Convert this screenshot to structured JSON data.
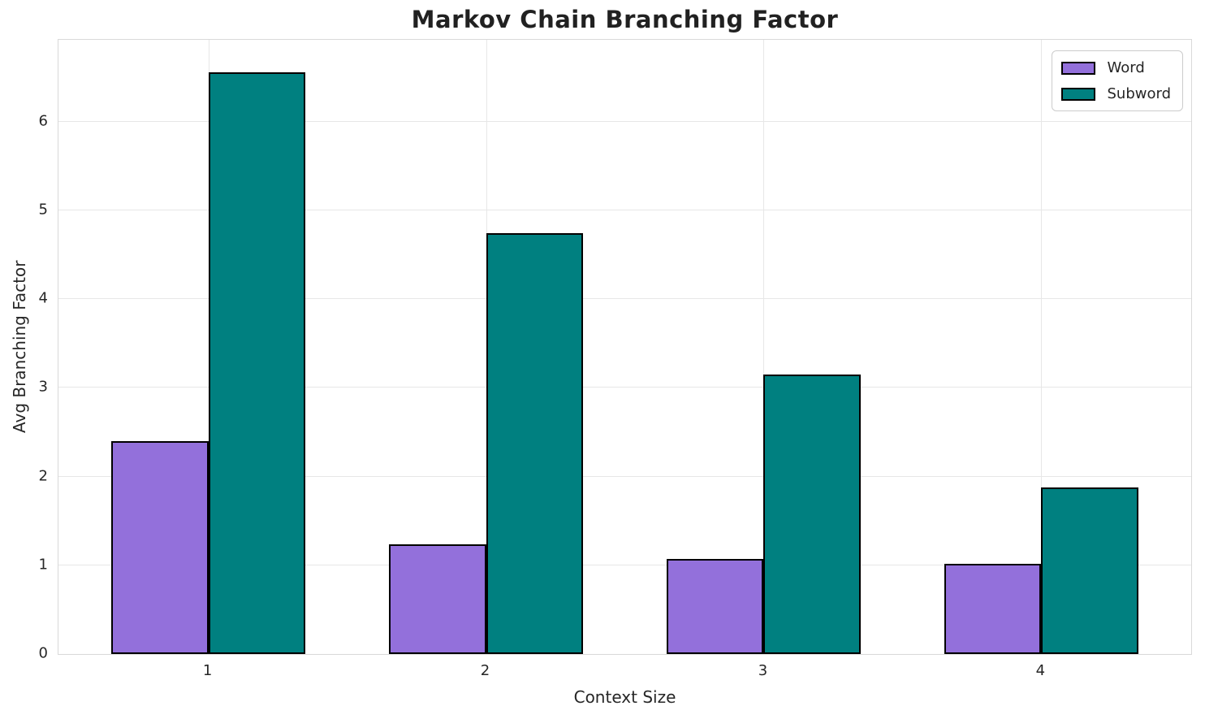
{
  "chart_data": {
    "type": "bar",
    "title": "Markov Chain Branching Factor",
    "xlabel": "Context Size",
    "ylabel": "Avg Branching Factor",
    "categories": [
      "1",
      "2",
      "3",
      "4"
    ],
    "series": [
      {
        "name": "Word",
        "color": "#9370DB",
        "values": [
          2.4,
          1.24,
          1.07,
          1.02
        ]
      },
      {
        "name": "Subword",
        "color": "#008080",
        "values": [
          6.55,
          4.74,
          3.15,
          1.88
        ]
      }
    ],
    "bar_width": 0.35,
    "bar_edge_color": "#000000",
    "xlim": [
      -0.54,
      3.54
    ],
    "ylim": [
      0,
      6.92
    ],
    "yticks": [
      0,
      1,
      2,
      3,
      4,
      5,
      6
    ],
    "grid": true,
    "legend_position": "upper right"
  },
  "colors": {
    "text": "#262626",
    "title": "#212121",
    "grid": "#e7e7e7",
    "spine": "#d9d9d9",
    "background": "#ffffff"
  }
}
